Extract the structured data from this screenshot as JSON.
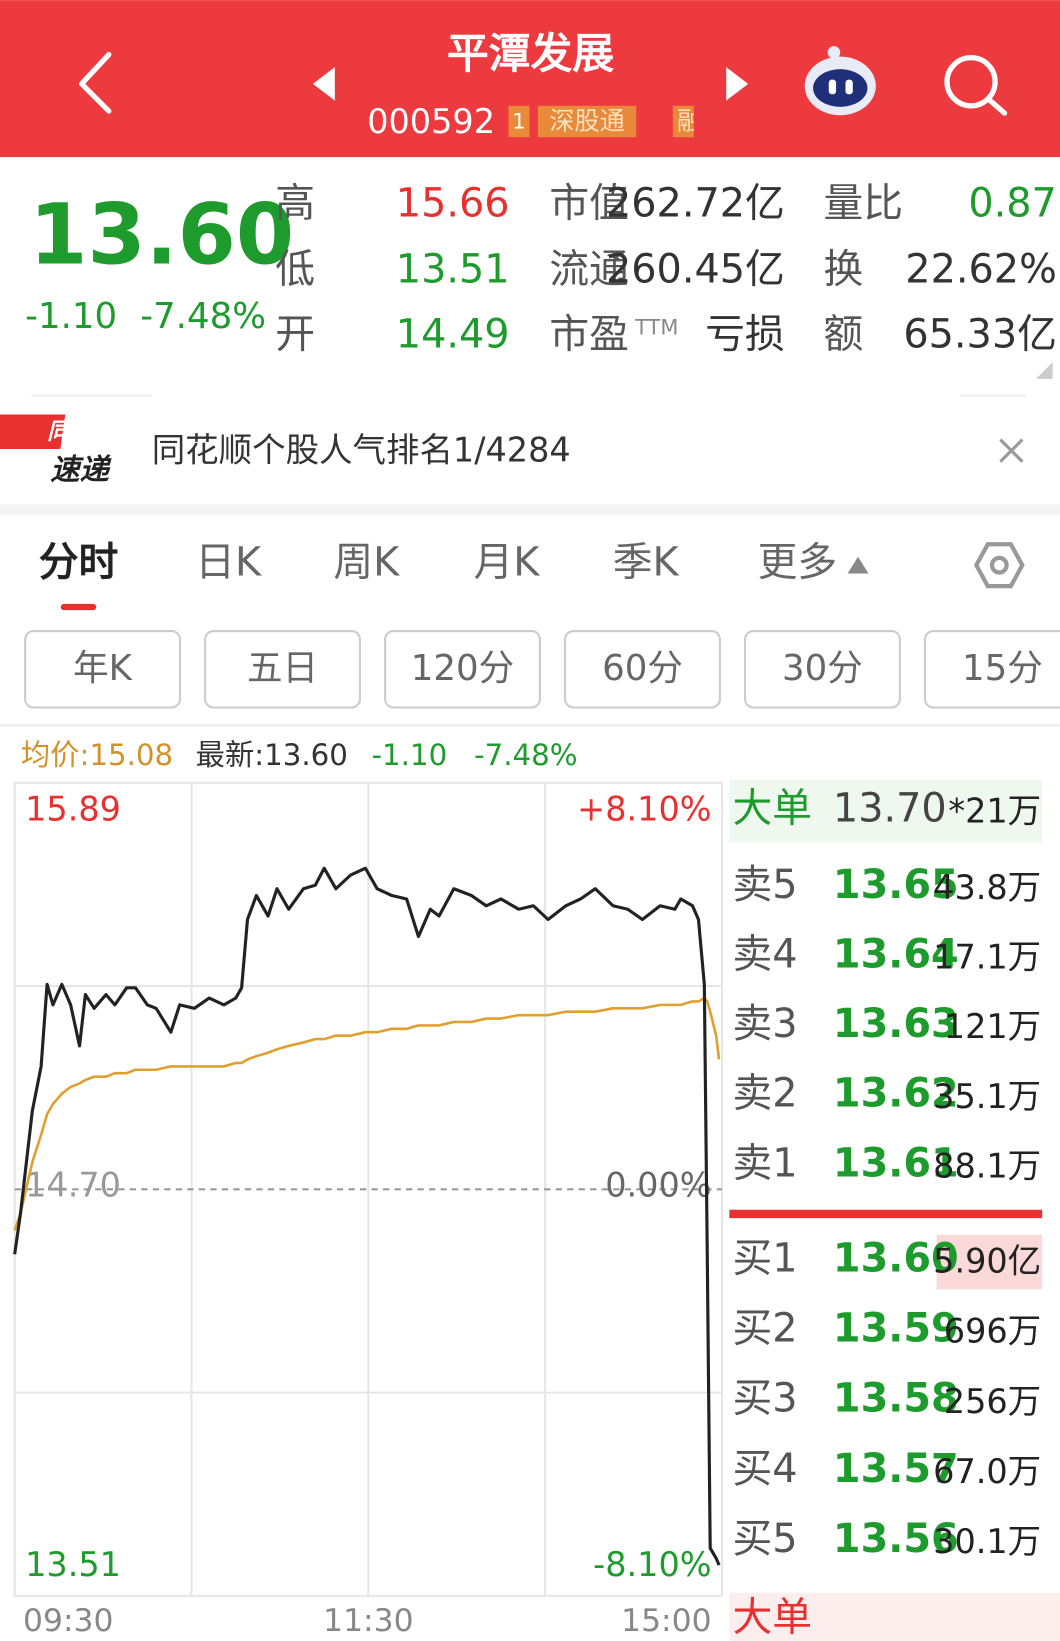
{
  "header": {
    "title": "平潭发展",
    "code": "000592",
    "badge_num": "1",
    "badge": "深股通",
    "badge_cut": "融"
  },
  "quote": {
    "price": "13.60",
    "change": "-1.10",
    "change_pct": "-7.48%",
    "stats": [
      {
        "label": "高",
        "value": "15.66"
      },
      {
        "label": "市值",
        "value": "262.72亿"
      },
      {
        "label": "量比",
        "value": "0.87"
      },
      {
        "label": "低",
        "value": "13.51"
      },
      {
        "label": "流通",
        "value": "260.45亿"
      },
      {
        "label": "换",
        "value": "22.62%"
      },
      {
        "label": "开",
        "value": "14.49"
      },
      {
        "label": "市盈",
        "sup": "TTM",
        "value": "亏损"
      },
      {
        "label": "额",
        "value": "65.33亿"
      }
    ]
  },
  "news": {
    "logo_top": "同花顺",
    "logo_bottom": "速递",
    "text": "同花顺个股人气排名1/4284"
  },
  "tabs": [
    "分时",
    "日K",
    "周K",
    "月K",
    "季K",
    "更多"
  ],
  "buttons": [
    "年K",
    "五日",
    "120分",
    "60分",
    "30分",
    "15分"
  ],
  "info_bar": {
    "avg": "均价:15.08",
    "latest": "最新:13.60",
    "change": "-1.10",
    "change_pct": "-7.48%"
  },
  "intraday": {
    "type": "line",
    "xlim": [
      0,
      240
    ],
    "xticks": [
      {
        "value": 0,
        "label": "09:30"
      },
      {
        "value": 120,
        "label": "11:30"
      },
      {
        "value": 240,
        "label": "15:00"
      }
    ],
    "ylim": [
      13.51,
      15.89
    ],
    "yticks": [
      15.89,
      {
        "value": 14.7,
        "label": "14.70"
      },
      13.51
    ],
    "y2lim": [
      -8.1,
      8.1
    ],
    "y2ticks": [
      {
        "value": 8.1,
        "label": "+8.10%"
      },
      {
        "value": 0,
        "label": "0.00%"
      },
      {
        "value": -8.1,
        "label": "-8.10%"
      }
    ],
    "x": [
      0,
      2,
      6,
      9,
      11,
      13,
      16,
      19,
      22,
      24,
      27,
      31,
      34,
      38,
      41,
      45,
      48,
      53,
      56,
      61,
      66,
      71,
      75,
      77,
      79,
      82,
      86,
      89,
      93,
      98,
      102,
      105,
      109,
      114,
      119,
      123,
      128,
      133,
      137,
      141,
      144,
      149,
      155,
      160,
      165,
      171,
      176,
      181,
      187,
      192,
      197,
      203,
      208,
      213,
      219,
      224,
      226,
      230,
      232,
      234,
      235,
      236,
      238,
      239
    ],
    "series": [
      {
        "color": "#222222",
        "values": [
          14.51,
          14.63,
          14.93,
          15.06,
          15.3,
          15.24,
          15.3,
          15.24,
          15.12,
          15.27,
          15.23,
          15.27,
          15.24,
          15.29,
          15.29,
          15.24,
          15.23,
          15.16,
          15.24,
          15.23,
          15.26,
          15.24,
          15.26,
          15.29,
          15.49,
          15.56,
          15.5,
          15.58,
          15.52,
          15.58,
          15.59,
          15.64,
          15.58,
          15.62,
          15.64,
          15.58,
          15.56,
          15.55,
          15.44,
          15.52,
          15.5,
          15.58,
          15.56,
          15.53,
          15.55,
          15.52,
          15.53,
          15.49,
          15.53,
          15.55,
          15.58,
          15.53,
          15.52,
          15.49,
          15.53,
          15.52,
          15.55,
          15.53,
          15.49,
          15.3,
          14.51,
          13.65,
          13.62,
          13.6
        ]
      },
      {
        "color": "#e0a030",
        "values": [
          14.58,
          14.63,
          14.78,
          14.86,
          14.92,
          14.95,
          14.98,
          15.0,
          15.01,
          15.02,
          15.03,
          15.03,
          15.04,
          15.04,
          15.05,
          15.05,
          15.05,
          15.06,
          15.06,
          15.06,
          15.06,
          15.06,
          15.07,
          15.07,
          15.08,
          15.09,
          15.1,
          15.11,
          15.12,
          15.13,
          15.14,
          15.14,
          15.15,
          15.15,
          15.16,
          15.16,
          15.17,
          15.17,
          15.18,
          15.18,
          15.18,
          15.19,
          15.19,
          15.2,
          15.2,
          15.21,
          15.21,
          15.21,
          15.22,
          15.22,
          15.22,
          15.23,
          15.23,
          15.23,
          15.24,
          15.24,
          15.24,
          15.25,
          15.25,
          15.26,
          15.25,
          15.22,
          15.15,
          15.08
        ]
      }
    ]
  },
  "order_book": {
    "top": {
      "label": "大单",
      "price": "13.70",
      "volume": "*21万"
    },
    "asks": [
      {
        "label": "卖5",
        "price": "13.65",
        "volume": "43.8万"
      },
      {
        "label": "卖4",
        "price": "13.64",
        "volume": "17.1万"
      },
      {
        "label": "卖3",
        "price": "13.63",
        "volume": "121万"
      },
      {
        "label": "卖2",
        "price": "13.62",
        "volume": "35.1万"
      },
      {
        "label": "卖1",
        "price": "13.61",
        "volume": "88.1万"
      }
    ],
    "bids": [
      {
        "label": "买1",
        "price": "13.60",
        "volume": "5.90亿"
      },
      {
        "label": "买2",
        "price": "13.59",
        "volume": "696万"
      },
      {
        "label": "买3",
        "price": "13.58",
        "volume": "256万"
      },
      {
        "label": "买4",
        "price": "13.57",
        "volume": "67.0万"
      },
      {
        "label": "买5",
        "price": "13.56",
        "volume": "30.1万"
      }
    ],
    "bottom_label": "大单"
  }
}
